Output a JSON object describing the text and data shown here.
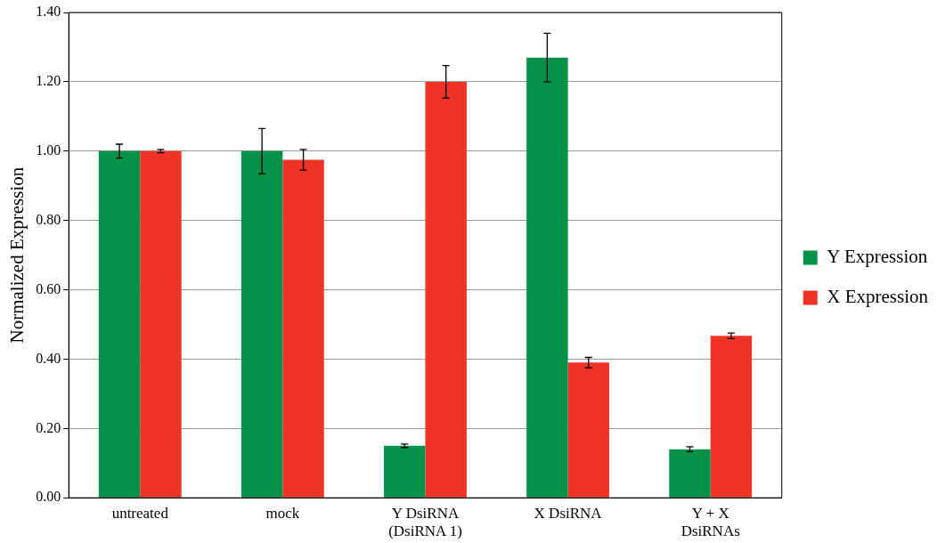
{
  "chart_data": {
    "type": "bar",
    "ylabel": "Normalized Expression",
    "categories": [
      "untreated",
      "mock",
      "Y DsiRNA\n(DsiRNA 1)",
      "X DsiRNA",
      "Y + X\nDsiRNAs"
    ],
    "series": [
      {
        "name": "Y Expression",
        "color": "#079048",
        "values": [
          1.0,
          1.0,
          0.15,
          1.27,
          0.14
        ],
        "errors": [
          0.02,
          0.065,
          0.005,
          0.07,
          0.007
        ]
      },
      {
        "name": "X Expression",
        "color": "#ee3327",
        "values": [
          1.0,
          0.975,
          1.2,
          0.39,
          0.467
        ],
        "errors": [
          0.005,
          0.03,
          0.047,
          0.015,
          0.008
        ]
      }
    ],
    "ylim": [
      0,
      1.4
    ],
    "yticks": [
      {
        "value": 0,
        "label": "0.00"
      },
      {
        "value": 0.2,
        "label": "0.20"
      },
      {
        "value": 0.4,
        "label": "0.40"
      },
      {
        "value": 0.6,
        "label": "0.60"
      },
      {
        "value": 0.8,
        "label": "0.80"
      },
      {
        "value": 1.0,
        "label": "1.00"
      },
      {
        "value": 1.2,
        "label": "1.20"
      },
      {
        "value": 1.4,
        "label": "1.40"
      }
    ],
    "grid": "y",
    "legend": "right"
  }
}
